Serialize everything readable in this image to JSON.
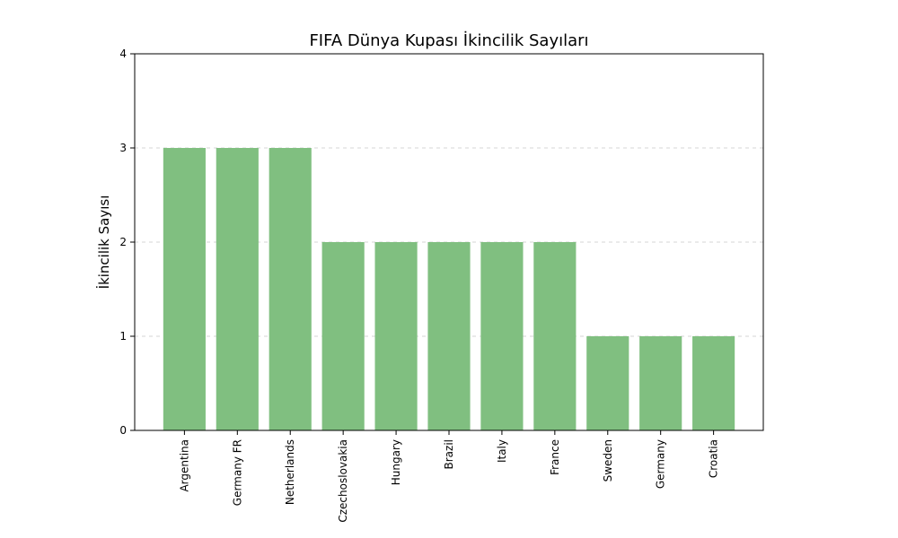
{
  "chart_data": {
    "type": "bar",
    "title": "FIFA Dünya Kupası İkincilik Sayıları",
    "xlabel": "",
    "ylabel": "İkincilik Sayısı",
    "categories": [
      "Argentina",
      "Germany FR",
      "Netherlands",
      "Czechoslovakia",
      "Hungary",
      "Brazil",
      "Italy",
      "France",
      "Sweden",
      "Germany",
      "Croatia"
    ],
    "values": [
      3,
      3,
      3,
      2,
      2,
      2,
      2,
      2,
      1,
      1,
      1
    ],
    "ylim": [
      0,
      4
    ],
    "yticks": [
      0,
      1,
      2,
      3,
      4
    ],
    "grid": "y-axis, dashed",
    "bar_color": "#80bf80",
    "legend": "none"
  }
}
